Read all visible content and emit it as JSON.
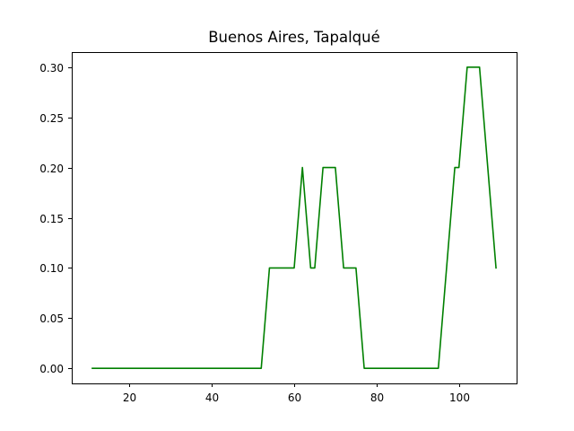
{
  "chart_data": {
    "type": "line",
    "title": "Buenos Aires, Tapalqué",
    "xlabel": "",
    "ylabel": "",
    "xlim": [
      6,
      114
    ],
    "ylim": [
      -0.015,
      0.315
    ],
    "xticks": [
      20,
      40,
      60,
      80,
      100
    ],
    "xtick_labels": [
      "20",
      "40",
      "60",
      "80",
      "100"
    ],
    "yticks": [
      0.0,
      0.05,
      0.1,
      0.15,
      0.2,
      0.25,
      0.3
    ],
    "ytick_labels": [
      "0.00",
      "0.05",
      "0.10",
      "0.15",
      "0.20",
      "0.25",
      "0.30"
    ],
    "grid": false,
    "legend": "none",
    "series": [
      {
        "color": "#008000",
        "x": [
          11,
          52,
          54,
          55,
          60,
          62,
          64,
          65,
          67,
          70,
          72,
          75,
          77,
          95,
          99,
          100,
          102,
          105,
          109
        ],
        "y": [
          0.0,
          0.0,
          0.1,
          0.1,
          0.1,
          0.2,
          0.1,
          0.1,
          0.2,
          0.2,
          0.1,
          0.1,
          0.0,
          0.0,
          0.2,
          0.2,
          0.3,
          0.3,
          0.1
        ]
      }
    ]
  }
}
